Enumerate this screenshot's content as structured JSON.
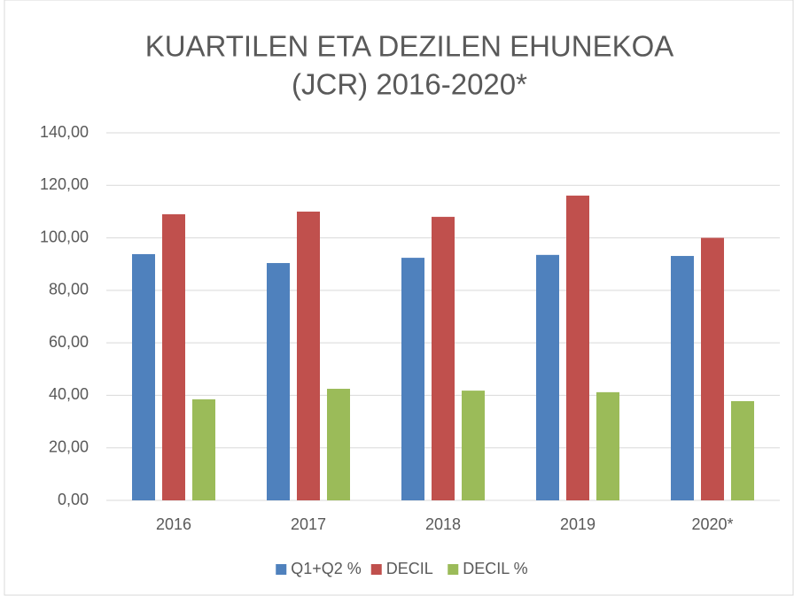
{
  "chart_data": {
    "type": "bar",
    "title": [
      "KUARTILEN ETA DEZILEN EHUNEKOA",
      "(JCR)  2016-2020*"
    ],
    "categories": [
      "2016",
      "2017",
      "2018",
      "2019",
      "2020*"
    ],
    "series": [
      {
        "name": "Q1+Q2 %",
        "color": "#4f81bd",
        "values": [
          93.8,
          90.4,
          92.4,
          93.5,
          93.1
        ]
      },
      {
        "name": "DECIL",
        "color": "#c0504d",
        "values": [
          109.0,
          110.0,
          108.0,
          116.1,
          100.0
        ]
      },
      {
        "name": "DECIL %",
        "color": "#9bbb59",
        "values": [
          38.5,
          42.5,
          41.8,
          41.2,
          37.8
        ]
      }
    ],
    "ylim": [
      0,
      140
    ],
    "yticks": [
      {
        "value": 0,
        "label": "0,00"
      },
      {
        "value": 20,
        "label": "20,00"
      },
      {
        "value": 40,
        "label": "40,00"
      },
      {
        "value": 60,
        "label": "60,00"
      },
      {
        "value": 80,
        "label": "80,00"
      },
      {
        "value": 100,
        "label": "100,00"
      },
      {
        "value": 120,
        "label": "120,00"
      },
      {
        "value": 140,
        "label": "140,00"
      }
    ],
    "grid": true,
    "legend": "bottom"
  }
}
